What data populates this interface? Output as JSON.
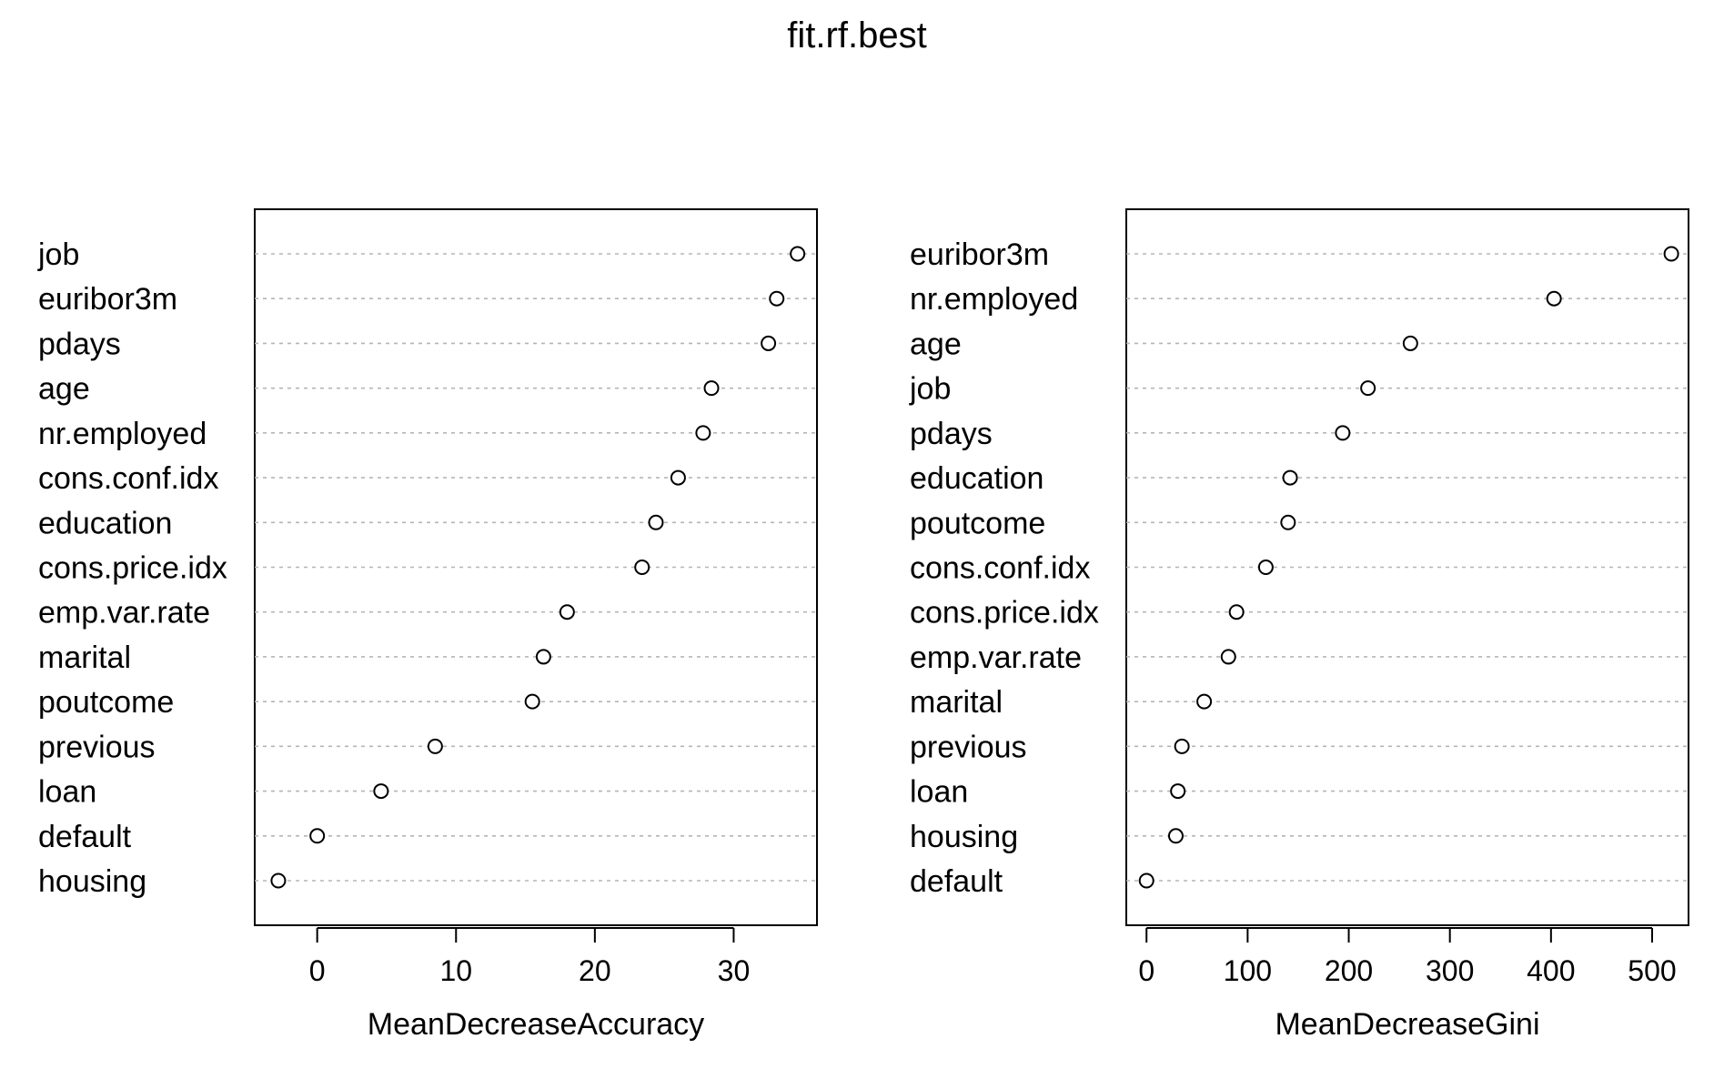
{
  "figure_title": "fit.rf.best",
  "chart_data": [
    {
      "type": "dotchart",
      "xlabel": "MeanDecreaseAccuracy",
      "xlim": [
        -4.5,
        36
      ],
      "xticks": [
        0,
        10,
        20,
        30
      ],
      "grid": "dotted horizontal guide lines",
      "categories": [
        "job",
        "euribor3m",
        "pdays",
        "age",
        "nr.employed",
        "cons.conf.idx",
        "education",
        "cons.price.idx",
        "emp.var.rate",
        "marital",
        "poutcome",
        "previous",
        "loan",
        "default",
        "housing"
      ],
      "values": [
        34.6,
        33.1,
        32.5,
        28.4,
        27.8,
        26.0,
        24.4,
        23.4,
        18.0,
        16.3,
        15.5,
        8.5,
        4.6,
        0.0,
        -2.8
      ]
    },
    {
      "type": "dotchart",
      "xlabel": "MeanDecreaseGini",
      "xlim": [
        -20,
        536
      ],
      "xticks": [
        0,
        100,
        200,
        300,
        400,
        500
      ],
      "grid": "dotted horizontal guide lines",
      "categories": [
        "euribor3m",
        "nr.employed",
        "age",
        "job",
        "pdays",
        "education",
        "poutcome",
        "cons.conf.idx",
        "cons.price.idx",
        "emp.var.rate",
        "marital",
        "previous",
        "loan",
        "housing",
        "default"
      ],
      "values": [
        519,
        403,
        261,
        219,
        194,
        142,
        140,
        118,
        89,
        81,
        57,
        35,
        31,
        29,
        0
      ]
    }
  ]
}
